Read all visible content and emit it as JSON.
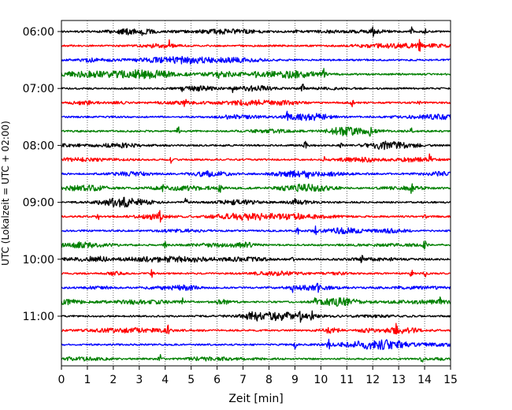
{
  "chart_data": {
    "type": "line",
    "title": "",
    "xlabel": "Zeit  [min]",
    "ylabel": "UTC (Lokalzeit = UTC + 02:00)",
    "xlim": [
      0,
      15
    ],
    "x_ticks": [
      "0",
      "1",
      "2",
      "3",
      "4",
      "5",
      "6",
      "7",
      "8",
      "9",
      "10",
      "11",
      "12",
      "13",
      "14",
      "15"
    ],
    "y_tick_labels": [
      "06:00",
      "07:00",
      "08:00",
      "09:00",
      "10:00",
      "11:00"
    ],
    "y_tick_rows": [
      0,
      4,
      8,
      12,
      16,
      20
    ],
    "row_count": 24,
    "row_interval_minutes": 15,
    "grid": "vertical dotted",
    "trace_colors": [
      "#000000",
      "#ff0000",
      "#0000ff",
      "#008000"
    ],
    "events": [
      [
        3.1,
        9.0,
        12.0,
        13.5,
        14.0
      ],
      [
        4.15,
        13.8
      ],
      [],
      [
        6.1,
        7.5,
        10.1
      ],
      [
        4.7,
        6.6,
        9.3
      ],
      [
        4.75,
        11.2,
        13.8
      ],
      [
        8.7
      ],
      [
        4.5,
        11.9,
        13.5
      ],
      [
        9.4,
        10.8
      ],
      [
        4.25,
        10.1,
        14.2
      ],
      [
        9.5
      ],
      [
        3.9,
        6.1,
        13.5
      ],
      [
        4.8,
        9.0
      ],
      [
        1.4,
        3.8,
        9.1,
        14.0
      ],
      [
        9.1,
        9.8
      ],
      [
        4.0,
        14.0
      ],
      [
        8.9,
        11.6
      ],
      [
        3.5,
        13.5,
        14.0
      ],
      [
        8.9,
        9.9
      ],
      [
        4.7,
        9.8,
        14.6
      ],
      [
        9.2,
        9.65
      ],
      [
        4.1,
        12.9
      ],
      [
        9.0,
        10.3
      ],
      [
        3.8,
        13.9
      ]
    ]
  }
}
